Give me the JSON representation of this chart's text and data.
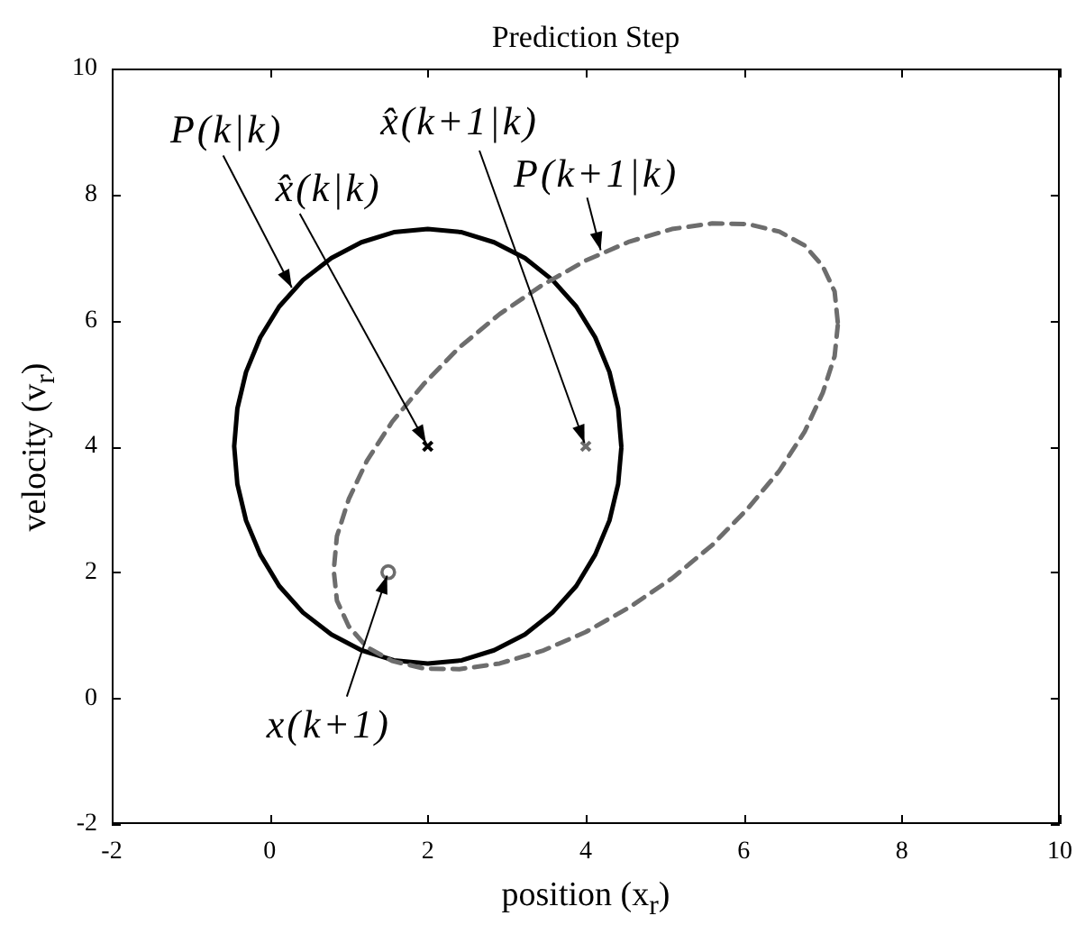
{
  "chart_data": {
    "type": "line",
    "title": "Prediction Step",
    "xlabel": "position (x$_{r}$)",
    "ylabel": "velocity (v$_{r}$)",
    "xlim": [
      -2,
      10
    ],
    "ylim": [
      -2,
      10
    ],
    "xticks": [
      -2,
      0,
      2,
      4,
      6,
      8,
      10
    ],
    "yticks": [
      -2,
      0,
      2,
      4,
      6,
      8,
      10
    ],
    "grid": false,
    "legend": false,
    "annotations": [
      {
        "text": "P(k|k)",
        "x": 0.3,
        "y": 6.47
      },
      {
        "text": "x̂(k|k)",
        "x": 2,
        "y": 4
      },
      {
        "text": "x̂(k+1|k)",
        "x": 4,
        "y": 4
      },
      {
        "text": "P(k+1|k)",
        "x": 4.2,
        "y": 7.06
      },
      {
        "text": "x(k+1)",
        "x": 1.5,
        "y": 2
      }
    ],
    "series": [
      {
        "color": "#000000",
        "line_style": "solid",
        "marker": "none",
        "x": [
          4.45,
          4.41,
          4.3,
          4.12,
          3.88,
          3.58,
          3.23,
          2.84,
          2.43,
          2.0,
          1.57,
          1.16,
          0.78,
          0.42,
          0.12,
          -0.12,
          -0.3,
          -0.41,
          -0.45,
          -0.41,
          -0.3,
          -0.12,
          0.12,
          0.42,
          0.78,
          1.16,
          1.57,
          2.0,
          2.43,
          2.84,
          3.23,
          3.58,
          3.88,
          4.12,
          4.3,
          4.41,
          4.45
        ],
        "values": [
          4.0,
          4.6,
          5.18,
          5.73,
          6.22,
          6.64,
          6.99,
          7.24,
          7.4,
          7.45,
          7.4,
          7.24,
          6.99,
          6.64,
          6.22,
          5.73,
          5.18,
          4.6,
          4.0,
          3.4,
          2.82,
          2.28,
          1.78,
          1.36,
          1.01,
          0.76,
          0.6,
          0.55,
          0.6,
          0.76,
          1.01,
          1.36,
          1.78,
          2.28,
          2.82,
          3.4,
          3.97
        ]
      },
      {
        "color": "#6d6d6d",
        "line_style": "dashed",
        "marker": "none",
        "x": [
          7.19,
          7.15,
          7.0,
          6.77,
          6.45,
          6.05,
          5.6,
          5.09,
          4.55,
          4.0,
          3.45,
          2.91,
          2.4,
          1.95,
          1.55,
          1.23,
          1.0,
          0.85,
          0.81,
          0.85,
          1.0,
          1.23,
          1.55,
          1.95,
          2.4,
          2.91,
          3.45,
          4.0,
          4.55,
          5.09,
          5.6,
          6.05,
          6.45,
          6.77,
          7.0,
          7.15,
          7.19
        ],
        "values": [
          5.97,
          6.46,
          6.86,
          7.19,
          7.41,
          7.53,
          7.54,
          7.45,
          7.25,
          6.95,
          6.56,
          6.1,
          5.57,
          4.99,
          4.39,
          3.77,
          3.16,
          2.57,
          2.03,
          1.55,
          1.14,
          0.81,
          0.59,
          0.47,
          0.46,
          0.55,
          0.75,
          1.05,
          1.44,
          1.9,
          2.43,
          3.01,
          3.61,
          4.23,
          4.85,
          5.43,
          5.92
        ]
      },
      {
        "type": "scatter",
        "color": "#000000",
        "marker": "cross",
        "x": [
          2
        ],
        "values": [
          4
        ]
      },
      {
        "type": "scatter",
        "color": "#6d6d6d",
        "marker": "cross",
        "x": [
          4
        ],
        "values": [
          4
        ]
      },
      {
        "type": "scatter",
        "color": "#6d6d6d",
        "marker": "circle",
        "x": [
          1.5
        ],
        "values": [
          2
        ]
      }
    ]
  }
}
